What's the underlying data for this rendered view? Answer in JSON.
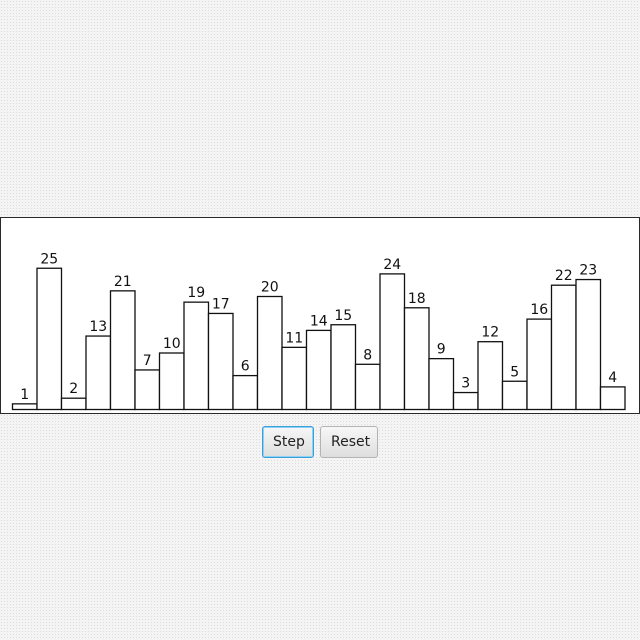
{
  "chart_data": {
    "type": "bar",
    "values": [
      1,
      25,
      2,
      13,
      21,
      7,
      10,
      19,
      17,
      6,
      20,
      11,
      14,
      15,
      8,
      24,
      18,
      9,
      3,
      12,
      5,
      16,
      22,
      23,
      4
    ],
    "labels": [
      "1",
      "25",
      "2",
      "13",
      "21",
      "7",
      "10",
      "19",
      "17",
      "6",
      "20",
      "11",
      "14",
      "15",
      "8",
      "24",
      "18",
      "9",
      "3",
      "12",
      "5",
      "16",
      "22",
      "23",
      "4"
    ],
    "ylim": [
      0,
      25
    ]
  },
  "controls": {
    "step_label": "Step",
    "reset_label": "Reset"
  },
  "colors": {
    "focus_border": "#3a9fd9",
    "bar_fill": "#ffffff",
    "bar_stroke": "#111111"
  }
}
